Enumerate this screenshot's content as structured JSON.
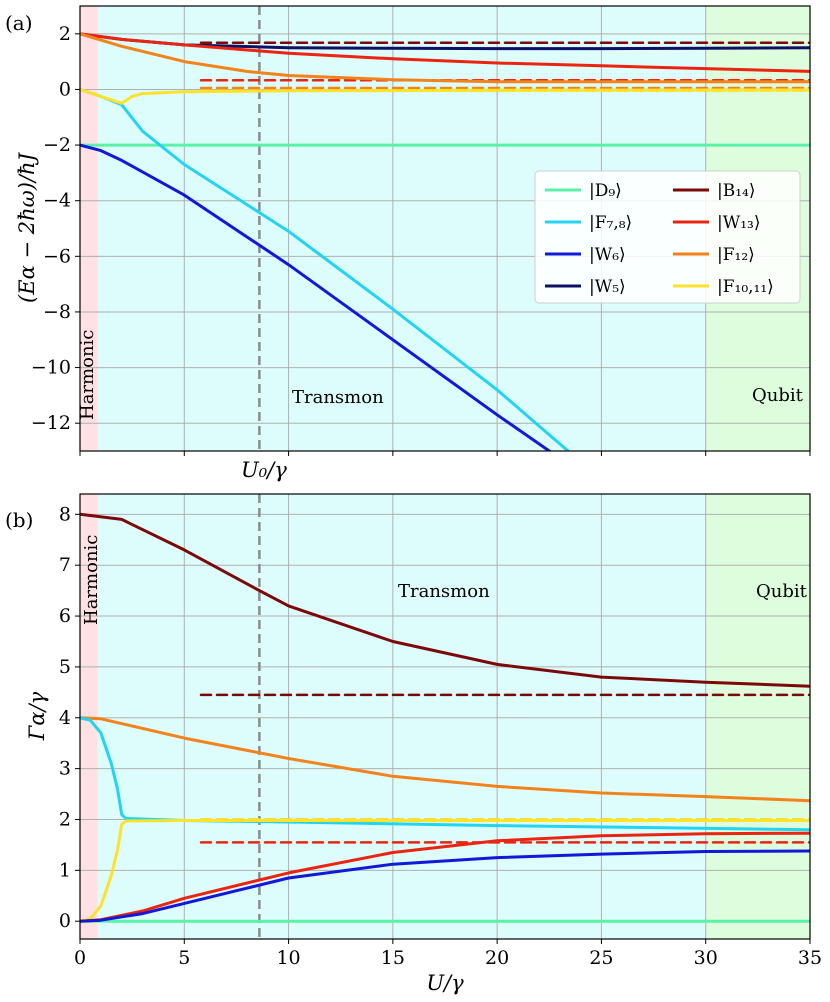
{
  "figure": {
    "x_axis_label": "U/γ",
    "marker_label": "U₀/γ",
    "marker_x": 8.6,
    "regions": [
      {
        "name": "Harmonic",
        "from": 0,
        "to": 0.85,
        "color": "#ffe0e3"
      },
      {
        "name": "Transmon",
        "from": 0.85,
        "to": 30,
        "color": "#ddfcfc"
      },
      {
        "name": "Qubit",
        "from": 30,
        "to": 35,
        "color": "#ddfddd"
      }
    ],
    "x_ticks": [
      0,
      5,
      10,
      15,
      20,
      25,
      30,
      35
    ]
  },
  "legend": [
    {
      "label": "|D₉⟩",
      "color": "#5af2a8"
    },
    {
      "label": "|F₇,₈⟩",
      "color": "#22d4f0"
    },
    {
      "label": "|W₆⟩",
      "color": "#1218d8"
    },
    {
      "label": "|W₅⟩",
      "color": "#0c1164"
    },
    {
      "label": "|B₁₄⟩",
      "color": "#7a0a0a"
    },
    {
      "label": "|W₁₃⟩",
      "color": "#ea2410"
    },
    {
      "label": "|F₁₂⟩",
      "color": "#f2821c"
    },
    {
      "label": "|F₁₀,₁₁⟩",
      "color": "#fce228"
    }
  ],
  "chart_data": [
    {
      "panel": "(a)",
      "type": "line",
      "ylabel": "(Eα − 2ħω)/ħJ",
      "xlim": [
        0,
        35
      ],
      "ylim": [
        -13,
        3
      ],
      "y_ticks": [
        2,
        0,
        -2,
        -4,
        -6,
        -8,
        -10,
        -12
      ],
      "region_labels": [
        "Harmonic",
        "Transmon",
        "Qubit"
      ],
      "series": [
        {
          "name": "|D₉⟩",
          "color": "#5af2a8",
          "x": [
            0,
            35
          ],
          "y": [
            -2,
            -2
          ]
        },
        {
          "name": "|F₇,₈⟩",
          "color": "#22d4f0",
          "x": [
            0,
            1,
            2,
            3,
            5,
            10,
            15,
            20,
            23.4
          ],
          "y": [
            0,
            -0.25,
            -0.55,
            -1.5,
            -2.7,
            -5.1,
            -7.9,
            -10.8,
            -13
          ]
        },
        {
          "name": "|W₆⟩",
          "color": "#1218d8",
          "x": [
            0,
            1,
            2,
            5,
            10,
            15,
            20,
            22.5
          ],
          "y": [
            -2,
            -2.2,
            -2.55,
            -3.8,
            -6.3,
            -9.0,
            -11.7,
            -13
          ]
        },
        {
          "name": "|W₅⟩",
          "color": "#0c1164",
          "x": [
            0,
            2,
            5,
            10,
            15,
            20,
            25,
            30,
            35
          ],
          "y": [
            2,
            1.8,
            1.6,
            1.5,
            1.48,
            1.47,
            1.47,
            1.48,
            1.5
          ]
        },
        {
          "name": "|B₁₄⟩",
          "color": "#7a0a0a",
          "x": [
            5.8,
            35
          ],
          "y": [
            1.68,
            1.68
          ],
          "dashed": true
        },
        {
          "name": "|W₁₃⟩",
          "color": "#ea2410",
          "x": [
            0,
            2,
            5,
            10,
            15,
            20,
            25,
            30,
            35
          ],
          "y": [
            2,
            1.8,
            1.6,
            1.3,
            1.1,
            0.95,
            0.85,
            0.75,
            0.65
          ]
        },
        {
          "name": "|W₁₃⟩ limit",
          "color": "#ea2410",
          "x": [
            5.8,
            35
          ],
          "y": [
            0.33,
            0.33
          ],
          "dashed": true
        },
        {
          "name": "|F₁₂⟩",
          "color": "#f2821c",
          "x": [
            0,
            2,
            5,
            8,
            10,
            15,
            20,
            25,
            35
          ],
          "y": [
            2,
            1.55,
            1.0,
            0.65,
            0.5,
            0.35,
            0.28,
            0.28,
            0.28
          ]
        },
        {
          "name": "|F₁₂⟩ limit",
          "color": "#f2821c",
          "x": [
            5.8,
            35
          ],
          "y": [
            0.05,
            0.05
          ],
          "dashed": true
        },
        {
          "name": "|F₁₀,₁₁⟩",
          "color": "#fce228",
          "x": [
            0,
            1,
            2,
            2.5,
            3,
            5,
            10,
            20,
            35
          ],
          "y": [
            0,
            -0.25,
            -0.5,
            -0.25,
            -0.15,
            -0.08,
            -0.05,
            -0.03,
            -0.02
          ]
        },
        {
          "name": "|F₁₀,₁₁⟩ limit",
          "color": "#fce228",
          "x": [
            5.8,
            35
          ],
          "y": [
            -0.05,
            -0.05
          ],
          "dashed": true
        }
      ]
    },
    {
      "panel": "(b)",
      "type": "line",
      "ylabel": "Γα/γ",
      "xlabel": "U/γ",
      "xlim": [
        0,
        35
      ],
      "ylim": [
        -0.35,
        8.4
      ],
      "y_ticks": [
        0,
        1,
        2,
        3,
        4,
        5,
        6,
        7,
        8
      ],
      "region_labels": [
        "Harmonic",
        "Transmon",
        "Qubit"
      ],
      "series": [
        {
          "name": "|D₉⟩",
          "color": "#5af2a8",
          "x": [
            0,
            35
          ],
          "y": [
            0,
            0
          ]
        },
        {
          "name": "|B₁₄⟩",
          "color": "#7a0a0a",
          "x": [
            0,
            2,
            5,
            8.6,
            10,
            15,
            20,
            25,
            30,
            35
          ],
          "y": [
            8,
            7.9,
            7.3,
            6.5,
            6.2,
            5.5,
            5.05,
            4.8,
            4.7,
            4.62
          ]
        },
        {
          "name": "|B₁₄⟩ limit",
          "color": "#7a0a0a",
          "x": [
            5.8,
            35
          ],
          "y": [
            4.45,
            4.45
          ],
          "dashed": true
        },
        {
          "name": "|F₁₂⟩",
          "color": "#f2821c",
          "x": [
            0,
            1,
            5,
            10,
            15,
            20,
            25,
            30,
            35
          ],
          "y": [
            4,
            3.98,
            3.6,
            3.2,
            2.85,
            2.65,
            2.52,
            2.45,
            2.37
          ]
        },
        {
          "name": "|F₁₂⟩ limit",
          "color": "#f2821c",
          "x": [
            5.8,
            35
          ],
          "y": [
            2.0,
            2.0
          ],
          "dashed": true
        },
        {
          "name": "|F₇,₈⟩",
          "color": "#22d4f0",
          "x": [
            0,
            0.5,
            1,
            1.5,
            1.8,
            2,
            2.2,
            5,
            10,
            20,
            35
          ],
          "y": [
            4,
            3.95,
            3.7,
            3.1,
            2.6,
            2.1,
            2.02,
            1.98,
            1.95,
            1.88,
            1.8
          ]
        },
        {
          "name": "|F₁₀,₁₁⟩",
          "color": "#fce228",
          "x": [
            0,
            0.5,
            1,
            1.5,
            1.8,
            2,
            2.2,
            5,
            10,
            20,
            35
          ],
          "y": [
            0,
            0.05,
            0.3,
            0.9,
            1.4,
            1.9,
            1.97,
            1.98,
            1.98,
            1.98,
            1.98
          ]
        },
        {
          "name": "|F₁₀,₁₁⟩ limit",
          "color": "#fce228",
          "x": [
            5.8,
            35
          ],
          "y": [
            2.0,
            2.0
          ],
          "dashed": true
        },
        {
          "name": "|W₁₃⟩",
          "color": "#ea2410",
          "x": [
            0,
            1,
            3,
            5,
            10,
            15,
            20,
            25,
            30,
            35
          ],
          "y": [
            0,
            0.03,
            0.2,
            0.45,
            0.95,
            1.35,
            1.58,
            1.68,
            1.72,
            1.73
          ]
        },
        {
          "name": "|W₁₃⟩ limit",
          "color": "#ea2410",
          "x": [
            5.8,
            35
          ],
          "y": [
            1.55,
            1.55
          ],
          "dashed": true
        },
        {
          "name": "|W₆⟩",
          "color": "#1218d8",
          "x": [
            0,
            1,
            3,
            5,
            10,
            15,
            20,
            25,
            30,
            35
          ],
          "y": [
            0,
            0.02,
            0.15,
            0.35,
            0.85,
            1.12,
            1.25,
            1.32,
            1.37,
            1.38
          ]
        }
      ]
    }
  ]
}
